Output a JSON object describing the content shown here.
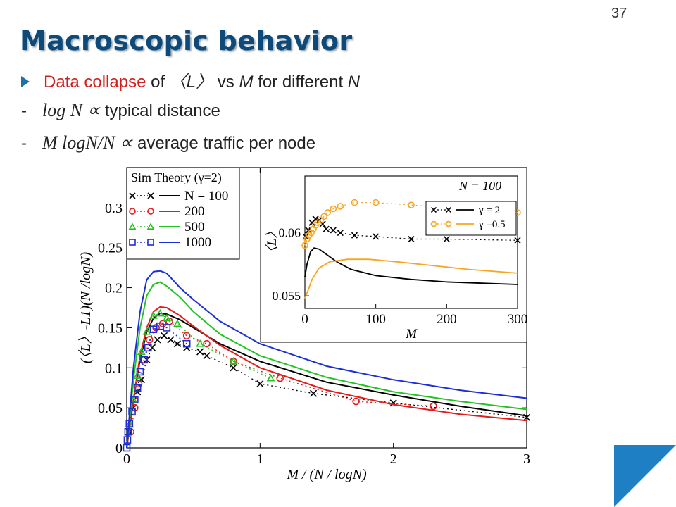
{
  "slide": {
    "number": "37",
    "title": "Macroscopic behavior",
    "bullets": [
      {
        "parts": [
          "Data collapse",
          " of ",
          "〈L〉",
          " vs ",
          "M",
          " for different ",
          "N"
        ]
      },
      {
        "dash": "-",
        "math": "log N ∝",
        "text": " typical distance"
      },
      {
        "dash": "-",
        "math": "M logN/N  ∝",
        "text": " average traffic per node"
      }
    ]
  },
  "chart_data": [
    {
      "type": "line",
      "xlabel": "M / (N / logN)",
      "ylabel": "(〈L〉-L1)(N /logN)",
      "xlim": [
        0,
        3
      ],
      "ylim": [
        0,
        0.35
      ],
      "xticks": [
        "0",
        "1",
        "2",
        "3"
      ],
      "yticks": [
        "0",
        "0.05",
        "0.1",
        "0.15",
        "0.2",
        "0.25",
        "0.3"
      ],
      "legend": {
        "header": "Sim Theory (γ=2)",
        "entries": [
          "N = 100",
          "200",
          "500",
          "1000"
        ],
        "position": "top-left"
      },
      "series": [
        {
          "name": "N = 100",
          "color": "#000000",
          "marker": "x",
          "sim": [
            [
              0.02,
              0.02
            ],
            [
              0.05,
              0.05
            ],
            [
              0.08,
              0.07
            ],
            [
              0.11,
              0.085
            ],
            [
              0.15,
              0.11
            ],
            [
              0.19,
              0.125
            ],
            [
              0.23,
              0.135
            ],
            [
              0.28,
              0.14
            ],
            [
              0.33,
              0.135
            ],
            [
              0.38,
              0.13
            ],
            [
              0.45,
              0.125
            ],
            [
              0.55,
              0.12
            ],
            [
              0.6,
              0.115
            ],
            [
              0.8,
              0.1
            ],
            [
              1.0,
              0.08
            ],
            [
              1.4,
              0.068
            ],
            [
              2.0,
              0.056
            ],
            [
              3.0,
              0.038
            ]
          ],
          "theory": [
            [
              0,
              0
            ],
            [
              0.05,
              0.06
            ],
            [
              0.1,
              0.11
            ],
            [
              0.15,
              0.145
            ],
            [
              0.2,
              0.162
            ],
            [
              0.25,
              0.168
            ],
            [
              0.3,
              0.167
            ],
            [
              0.4,
              0.16
            ],
            [
              0.5,
              0.15
            ],
            [
              0.7,
              0.13
            ],
            [
              1.0,
              0.108
            ],
            [
              1.5,
              0.082
            ],
            [
              2.0,
              0.066
            ],
            [
              2.5,
              0.052
            ],
            [
              3.0,
              0.04
            ]
          ]
        },
        {
          "name": "200",
          "color": "#e31b1b",
          "marker": "o",
          "sim": [
            [
              0.03,
              0.02
            ],
            [
              0.06,
              0.05
            ],
            [
              0.09,
              0.08
            ],
            [
              0.13,
              0.11
            ],
            [
              0.17,
              0.135
            ],
            [
              0.22,
              0.15
            ],
            [
              0.27,
              0.155
            ],
            [
              0.32,
              0.158
            ],
            [
              0.45,
              0.14
            ],
            [
              0.6,
              0.13
            ],
            [
              0.8,
              0.108
            ],
            [
              1.15,
              0.087
            ],
            [
              1.72,
              0.058
            ],
            [
              2.3,
              0.052
            ]
          ],
          "theory": [
            [
              0,
              0
            ],
            [
              0.05,
              0.06
            ],
            [
              0.1,
              0.115
            ],
            [
              0.15,
              0.15
            ],
            [
              0.2,
              0.17
            ],
            [
              0.25,
              0.176
            ],
            [
              0.3,
              0.175
            ],
            [
              0.4,
              0.165
            ],
            [
              0.5,
              0.152
            ],
            [
              0.7,
              0.128
            ],
            [
              1.0,
              0.1
            ],
            [
              1.5,
              0.072
            ],
            [
              2.0,
              0.054
            ],
            [
              2.5,
              0.042
            ],
            [
              3.0,
              0.034
            ]
          ]
        },
        {
          "name": "500",
          "color": "#22c322",
          "marker": "triangle",
          "sim": [
            [
              0.02,
              0.03
            ],
            [
              0.05,
              0.06
            ],
            [
              0.08,
              0.09
            ],
            [
              0.11,
              0.12
            ],
            [
              0.15,
              0.145
            ],
            [
              0.2,
              0.165
            ],
            [
              0.25,
              0.168
            ],
            [
              0.3,
              0.162
            ],
            [
              0.38,
              0.155
            ],
            [
              0.55,
              0.13
            ],
            [
              0.8,
              0.108
            ],
            [
              1.08,
              0.087
            ]
          ],
          "theory": [
            [
              0,
              0
            ],
            [
              0.05,
              0.085
            ],
            [
              0.1,
              0.15
            ],
            [
              0.15,
              0.19
            ],
            [
              0.2,
              0.204
            ],
            [
              0.25,
              0.207
            ],
            [
              0.3,
              0.202
            ],
            [
              0.4,
              0.188
            ],
            [
              0.5,
              0.17
            ],
            [
              0.7,
              0.142
            ],
            [
              1.0,
              0.115
            ],
            [
              1.5,
              0.088
            ],
            [
              2.0,
              0.07
            ],
            [
              2.5,
              0.058
            ],
            [
              3.0,
              0.048
            ]
          ]
        },
        {
          "name": "1000",
          "color": "#1c2fd6",
          "marker": "square",
          "sim": [
            [
              0.0,
              0.0
            ],
            [
              0.005,
              0.01
            ],
            [
              0.01,
              0.02
            ],
            [
              0.02,
              0.03
            ],
            [
              0.04,
              0.045
            ],
            [
              0.06,
              0.06
            ],
            [
              0.08,
              0.075
            ],
            [
              0.1,
              0.095
            ],
            [
              0.13,
              0.11
            ],
            [
              0.16,
              0.125
            ],
            [
              0.2,
              0.148
            ],
            [
              0.25,
              0.152
            ],
            [
              0.3,
              0.15
            ],
            [
              0.45,
              0.13
            ]
          ],
          "theory": [
            [
              0,
              0
            ],
            [
              0.05,
              0.1
            ],
            [
              0.1,
              0.17
            ],
            [
              0.15,
              0.21
            ],
            [
              0.2,
              0.22
            ],
            [
              0.25,
              0.221
            ],
            [
              0.3,
              0.218
            ],
            [
              0.4,
              0.2
            ],
            [
              0.5,
              0.185
            ],
            [
              0.7,
              0.158
            ],
            [
              1.0,
              0.13
            ],
            [
              1.5,
              0.102
            ],
            [
              2.0,
              0.085
            ],
            [
              2.5,
              0.072
            ],
            [
              3.0,
              0.062
            ]
          ]
        }
      ]
    },
    {
      "type": "line",
      "xlabel": "M",
      "ylabel": "〈L〉",
      "xlim": [
        0,
        300
      ],
      "ylim": [
        0.054,
        0.0645
      ],
      "xticks": [
        "0",
        "100",
        "200",
        "300"
      ],
      "yticks": [
        "0.055",
        "0.06"
      ],
      "annotation": "N = 100",
      "legend": {
        "entries": [
          "γ = 2",
          "γ =0.5"
        ],
        "position": "right"
      },
      "series": [
        {
          "name": "γ = 2",
          "color": "#000000",
          "marker": "x",
          "sim": [
            [
              1,
              0.0597
            ],
            [
              5,
              0.0602
            ],
            [
              10,
              0.0608
            ],
            [
              15,
              0.0611
            ],
            [
              20,
              0.061
            ],
            [
              25,
              0.0607
            ],
            [
              30,
              0.0603
            ],
            [
              40,
              0.0602
            ],
            [
              50,
              0.06
            ],
            [
              70,
              0.0598
            ],
            [
              100,
              0.0597
            ],
            [
              150,
              0.0595
            ],
            [
              200,
              0.0595
            ],
            [
              300,
              0.0594
            ]
          ],
          "theory": [
            [
              0,
              0.0565
            ],
            [
              3,
              0.0575
            ],
            [
              8,
              0.0585
            ],
            [
              13,
              0.0588
            ],
            [
              20,
              0.0587
            ],
            [
              30,
              0.0583
            ],
            [
              45,
              0.0577
            ],
            [
              65,
              0.0571
            ],
            [
              100,
              0.0566
            ],
            [
              150,
              0.0563
            ],
            [
              200,
              0.0561
            ],
            [
              250,
              0.056
            ],
            [
              300,
              0.0559
            ]
          ]
        },
        {
          "name": "γ =0.5",
          "color": "#f5a623",
          "marker": "o",
          "sim": [
            [
              0,
              0.059
            ],
            [
              3,
              0.0595
            ],
            [
              6,
              0.0598
            ],
            [
              9,
              0.06
            ],
            [
              12,
              0.0603
            ],
            [
              15,
              0.0606
            ],
            [
              18,
              0.0608
            ],
            [
              22,
              0.061
            ],
            [
              27,
              0.0613
            ],
            [
              32,
              0.0616
            ],
            [
              40,
              0.0619
            ],
            [
              50,
              0.0621
            ],
            [
              70,
              0.0624
            ],
            [
              100,
              0.0624
            ],
            [
              150,
              0.0622
            ],
            [
              200,
              0.062
            ],
            [
              250,
              0.0618
            ],
            [
              300,
              0.0616
            ]
          ],
          "theory": [
            [
              0,
              0.0548
            ],
            [
              5,
              0.0555
            ],
            [
              10,
              0.0563
            ],
            [
              20,
              0.0572
            ],
            [
              35,
              0.0577
            ],
            [
              60,
              0.0579
            ],
            [
              90,
              0.0579
            ],
            [
              130,
              0.0577
            ],
            [
              180,
              0.0574
            ],
            [
              230,
              0.0571
            ],
            [
              300,
              0.0568
            ]
          ]
        }
      ]
    }
  ]
}
